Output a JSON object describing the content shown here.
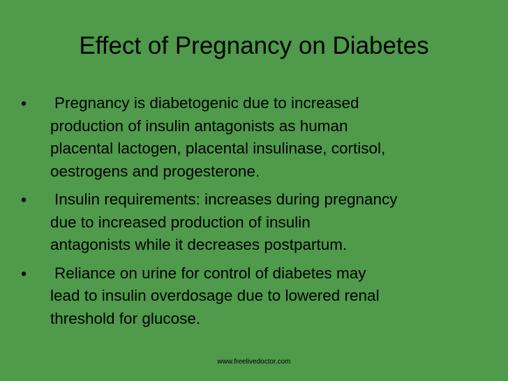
{
  "slide": {
    "title": "Effect of Pregnancy on Diabetes",
    "bullets": [
      [
        "Pregnancy is diabetogenic due to increased",
        "production of insulin antagonists as human",
        "placental lactogen, placental insulinase, cortisol,",
        "oestrogens and progesterone."
      ],
      [
        "Insulin requirements: increases during pregnancy",
        "due to increased production of insulin",
        "antagonists while it decreases postpartum."
      ],
      [
        "Reliance on urine for control of diabetes may",
        "lead to insulin overdosage due to lowered renal",
        "threshold for glucose."
      ]
    ],
    "footer": "www.freelivedoctor.com"
  }
}
